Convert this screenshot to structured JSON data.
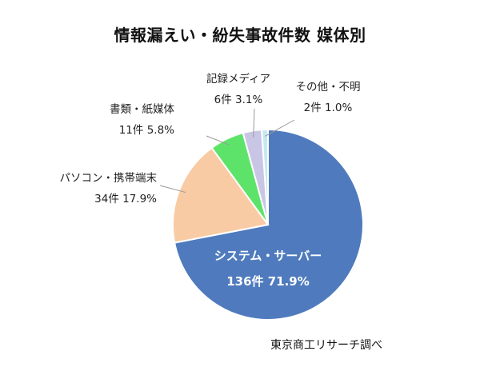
{
  "chart_data": {
    "type": "pie",
    "title": "情報漏えい・紛失事故件数 媒体別",
    "source": "東京商工リサーチ調べ",
    "slices": [
      {
        "name": "システム・サーバー",
        "count": "136件",
        "percent": "71.9%",
        "value": 136,
        "color": "#4F7BBE"
      },
      {
        "name": "パソコン・携帯端末",
        "count": "34件",
        "percent": "17.9%",
        "value": 34,
        "color": "#F8CBA4"
      },
      {
        "name": "書類・紙媒体",
        "count": "11件",
        "percent": "5.8%",
        "value": 11,
        "color": "#5EE36A"
      },
      {
        "name": "記録メディア",
        "count": "6件",
        "percent": "3.1%",
        "value": 6,
        "color": "#C9C6E5"
      },
      {
        "name": "その他・不明",
        "count": "2件",
        "percent": "1.0%",
        "value": 2,
        "color": "#C5E9F3"
      }
    ]
  }
}
